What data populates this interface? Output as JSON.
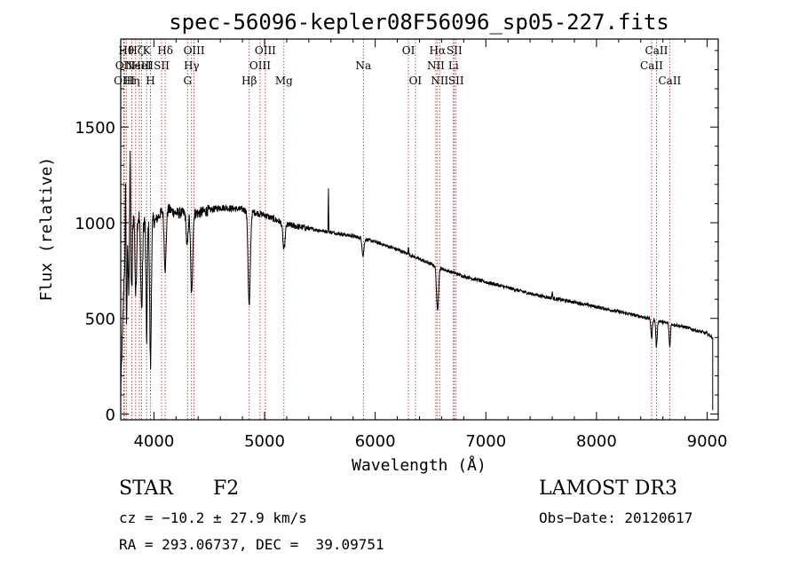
{
  "chart_data": {
    "type": "line",
    "title": "spec-56096-kepler08F56096_sp05-227.fits",
    "xlabel": "Wavelength (Å)",
    "ylabel": "Flux (relative)",
    "xlim": [
      3700,
      9100
    ],
    "ylim": [
      -30,
      1960
    ],
    "xticks": [
      4000,
      5000,
      6000,
      7000,
      8000,
      9000
    ],
    "yticks": [
      0,
      500,
      1000,
      1500
    ],
    "continuum": {
      "x": [
        3700,
        3740,
        3800,
        3900,
        4000,
        4100,
        4200,
        4400,
        4600,
        4800,
        5000,
        5200,
        5400,
        5600,
        5800,
        6000,
        6200,
        6400,
        6600,
        6800,
        7000,
        7200,
        7400,
        7600,
        7800,
        8000,
        8200,
        8400,
        8600,
        8800,
        9000,
        9050
      ],
      "y": [
        120,
        900,
        1050,
        1020,
        1000,
        1080,
        1050,
        1050,
        1080,
        1070,
        1040,
        990,
        970,
        950,
        930,
        900,
        860,
        810,
        760,
        720,
        690,
        660,
        630,
        605,
        585,
        560,
        535,
        510,
        480,
        455,
        420,
        400
      ]
    },
    "absorption_features": [
      {
        "x": 3750,
        "depth": 520,
        "width": 6
      },
      {
        "x": 3772,
        "depth": 330,
        "width": 5
      },
      {
        "x": 3799,
        "depth": 420,
        "width": 6
      },
      {
        "x": 3836,
        "depth": 420,
        "width": 7
      },
      {
        "x": 3889,
        "depth": 480,
        "width": 8
      },
      {
        "x": 3934,
        "depth": 620,
        "width": 6
      },
      {
        "x": 3969,
        "depth": 750,
        "width": 7
      },
      {
        "x": 4102,
        "depth": 320,
        "width": 9
      },
      {
        "x": 4300,
        "depth": 180,
        "width": 8
      },
      {
        "x": 4341,
        "depth": 430,
        "width": 9
      },
      {
        "x": 4861,
        "depth": 500,
        "width": 10
      },
      {
        "x": 5175,
        "depth": 140,
        "width": 10
      },
      {
        "x": 5890,
        "depth": 90,
        "width": 8
      },
      {
        "x": 6563,
        "depth": 230,
        "width": 9
      },
      {
        "x": 8498,
        "depth": 100,
        "width": 6
      },
      {
        "x": 8542,
        "depth": 140,
        "width": 6
      },
      {
        "x": 8662,
        "depth": 120,
        "width": 6
      }
    ],
    "emission_features": [
      {
        "x": 5577,
        "height": 230,
        "width": 2
      },
      {
        "x": 6300,
        "height": 40,
        "width": 3
      },
      {
        "x": 7600,
        "height": 35,
        "width": 3
      },
      {
        "x": 3745,
        "height": 700,
        "width": 3
      },
      {
        "x": 3785,
        "height": 350,
        "width": 4
      }
    ],
    "spectral_lines": [
      {
        "x": 3727,
        "label": "OII",
        "row": 1
      },
      {
        "x": 3733,
        "label": "OIII",
        "row": 2
      },
      {
        "x": 3750,
        "label": "Hθ",
        "row": 0
      },
      {
        "x": 3800,
        "label": "Hη",
        "row": 2
      },
      {
        "x": 3835,
        "label": "Hζ",
        "row": 0
      },
      {
        "x": 3869,
        "label": "NeIII",
        "row": 1
      },
      {
        "x": 3889,
        "label": "HeI",
        "row": 1
      },
      {
        "x": 3934,
        "label": "K",
        "row": 0
      },
      {
        "x": 3969,
        "label": "H",
        "row": 2
      },
      {
        "x": 4069,
        "label": "SII",
        "row": 1
      },
      {
        "x": 4102,
        "label": "Hδ",
        "row": 0
      },
      {
        "x": 4304,
        "label": "G",
        "row": 2
      },
      {
        "x": 4340,
        "label": "Hγ",
        "row": 1
      },
      {
        "x": 4363,
        "label": "OIII",
        "row": 0
      },
      {
        "x": 4861,
        "label": "Hβ",
        "row": 2
      },
      {
        "x": 4959,
        "label": "OIII",
        "row": 1
      },
      {
        "x": 5007,
        "label": "OIII",
        "row": 0
      },
      {
        "x": 5175,
        "label": "Mg",
        "row": 2
      },
      {
        "x": 5893,
        "label": "Na",
        "row": 1
      },
      {
        "x": 6300,
        "label": "OI",
        "row": 0
      },
      {
        "x": 6363,
        "label": "OI",
        "row": 2
      },
      {
        "x": 6548,
        "label": "NII",
        "row": 1
      },
      {
        "x": 6563,
        "label": "Hα",
        "row": 0
      },
      {
        "x": 6583,
        "label": "NII",
        "row": 2
      },
      {
        "x": 6707,
        "label": "Li",
        "row": 1
      },
      {
        "x": 6716,
        "label": "SII",
        "row": 0
      },
      {
        "x": 6731,
        "label": "SII",
        "row": 2
      },
      {
        "x": 8498,
        "label": "CaII",
        "row": 1
      },
      {
        "x": 8542,
        "label": "CaII",
        "row": 0
      },
      {
        "x": 8662,
        "label": "CaII",
        "row": 2
      }
    ]
  },
  "info": {
    "class": "STAR",
    "subclass": "F2",
    "survey": "LAMOST DR3",
    "redshift": "cz = −10.2 ± 27.9 km/s",
    "obsdate": "Obs−Date: 20120617",
    "coords": "RA = 293.06737, DEC =  39.09751"
  },
  "colors": {
    "spectrum": "#000000",
    "line_marker": "#b22222",
    "text": "#000000"
  }
}
